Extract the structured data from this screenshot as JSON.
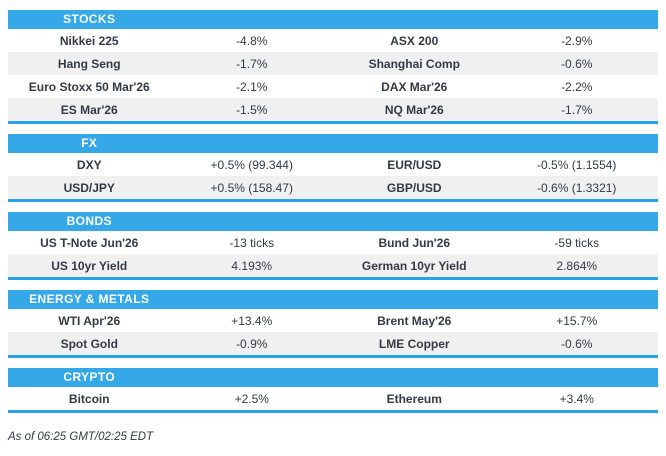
{
  "colors": {
    "header_blue": "#35a8e8",
    "rule_blue": "#27a2e6",
    "row_alt_gray": "#f0f0f0",
    "text": "#333a45",
    "header_text": "#ffffff"
  },
  "page": {
    "footer": "As of 06:25 GMT/02:25 EDT"
  },
  "sections": [
    {
      "title": "STOCKS",
      "rows": [
        [
          "Nikkei 225",
          "-4.8%",
          "ASX 200",
          "-2.9%"
        ],
        [
          "Hang Seng",
          "-1.7%",
          "Shanghai Comp",
          "-0.6%"
        ],
        [
          "Euro Stoxx 50 Mar'26",
          "-2.1%",
          "DAX Mar'26",
          "-2.2%"
        ],
        [
          "ES Mar'26",
          "-1.5%",
          "NQ Mar'26",
          "-1.7%"
        ]
      ]
    },
    {
      "title": "FX",
      "rows": [
        [
          "DXY",
          "+0.5% (99.344)",
          "EUR/USD",
          "-0.5% (1.1554)"
        ],
        [
          "USD/JPY",
          "+0.5% (158.47)",
          "GBP/USD",
          "-0.6% (1.3321)"
        ]
      ]
    },
    {
      "title": "BONDS",
      "rows": [
        [
          "US T-Note Jun'26",
          "-13 ticks",
          "Bund Jun'26",
          "-59 ticks"
        ],
        [
          "US 10yr Yield",
          "4.193%",
          "German 10yr Yield",
          "2.864%"
        ]
      ]
    },
    {
      "title": "ENERGY & METALS",
      "rows": [
        [
          "WTI Apr'26",
          "+13.4%",
          "Brent May'26",
          "+15.7%"
        ],
        [
          "Spot Gold",
          "-0.9%",
          "LME Copper",
          "-0.6%"
        ]
      ]
    },
    {
      "title": "CRYPTO",
      "rows": [
        [
          "Bitcoin",
          "+2.5%",
          "Ethereum",
          "+3.4%"
        ]
      ]
    }
  ]
}
